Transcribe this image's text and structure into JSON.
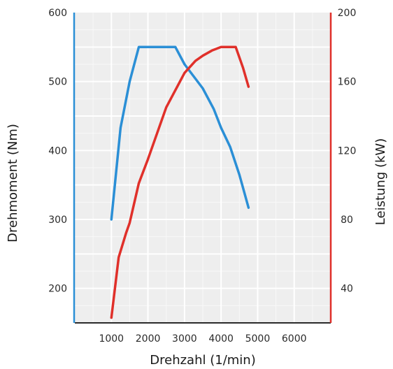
{
  "chart_data": {
    "type": "line",
    "title": "",
    "xlabel": "Drehzahl (1/min)",
    "ylabel_left": "Drehmoment (Nm)",
    "ylabel_right": "Leistung (kW)",
    "xlim": [
      0,
      7000
    ],
    "ylim_left": [
      150,
      600
    ],
    "ylim_right": [
      20,
      200
    ],
    "x_ticks": [
      "1000",
      "2000",
      "3000",
      "4000",
      "5000",
      "6000"
    ],
    "x_tick_values": [
      1000,
      2000,
      3000,
      4000,
      5000,
      6000
    ],
    "y_left_ticks": [
      "200",
      "300",
      "400",
      "500",
      "600"
    ],
    "y_left_tick_values": [
      200,
      300,
      400,
      500,
      600
    ],
    "y_right_ticks": [
      "40",
      "80",
      "120",
      "160",
      "200"
    ],
    "y_right_tick_values": [
      40,
      80,
      120,
      160,
      200
    ],
    "grid": true,
    "colors": {
      "torque": "#2b8fd6",
      "power": "#e0302a",
      "left_axis": "#2b8fd6",
      "right_axis": "#e0302a",
      "plot_bg": "#eeeeee",
      "grid": "#ffffff"
    },
    "series": [
      {
        "key": "torque",
        "axis": "left",
        "x": [
          1000,
          1250,
          1500,
          1750,
          2000,
          2500,
          2750,
          3000,
          3500,
          3800,
          4000,
          4250,
          4500,
          4750
        ],
        "values": [
          300,
          433,
          500,
          550,
          550,
          550,
          550,
          525,
          490,
          460,
          433,
          405,
          365,
          317
        ]
      },
      {
        "key": "power",
        "axis": "right",
        "x": [
          1000,
          1200,
          1400,
          1500,
          1750,
          2000,
          2500,
          3000,
          3300,
          3500,
          3750,
          4000,
          4250,
          4400,
          4600,
          4750
        ],
        "values": [
          23,
          58,
          72,
          78,
          101,
          115,
          145,
          165,
          172,
          175,
          178,
          180,
          180,
          180,
          168,
          157
        ]
      }
    ]
  }
}
